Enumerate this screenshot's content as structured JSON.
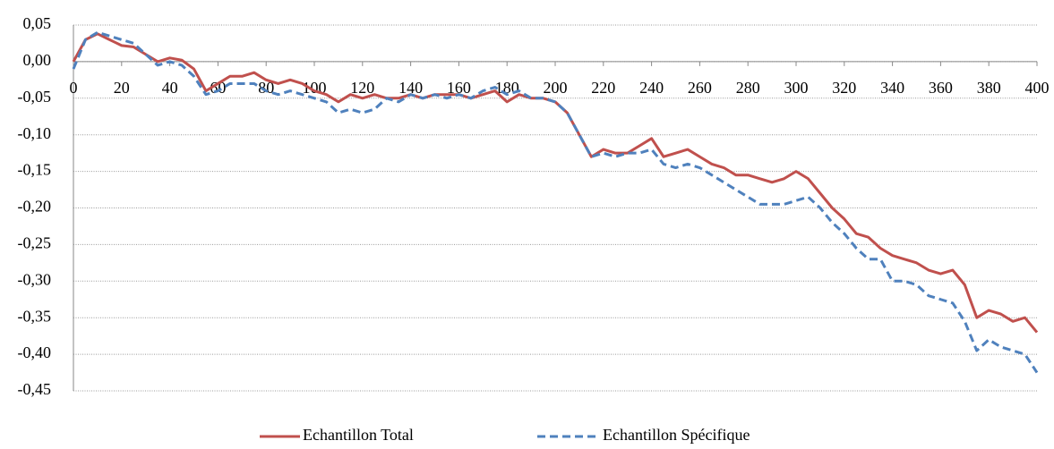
{
  "chart_data": {
    "type": "line",
    "x": [
      0,
      5,
      10,
      15,
      20,
      25,
      30,
      35,
      40,
      45,
      50,
      55,
      60,
      65,
      70,
      75,
      80,
      85,
      90,
      95,
      100,
      105,
      110,
      115,
      120,
      125,
      130,
      135,
      140,
      145,
      150,
      155,
      160,
      165,
      170,
      175,
      180,
      185,
      190,
      195,
      200,
      205,
      210,
      215,
      220,
      225,
      230,
      235,
      240,
      245,
      250,
      255,
      260,
      265,
      270,
      275,
      280,
      285,
      290,
      295,
      300,
      305,
      310,
      315,
      320,
      325,
      330,
      335,
      340,
      345,
      350,
      355,
      360,
      365,
      370,
      375,
      380,
      385,
      390,
      395,
      400
    ],
    "series": [
      {
        "name": "Echantillon Total",
        "color": "#c0504d",
        "dash": false,
        "values": [
          0,
          0.03,
          0.038,
          0.03,
          0.022,
          0.02,
          0.01,
          0,
          0.005,
          0.002,
          -0.01,
          -0.04,
          -0.03,
          -0.02,
          -0.02,
          -0.015,
          -0.025,
          -0.03,
          -0.025,
          -0.03,
          -0.04,
          -0.045,
          -0.055,
          -0.045,
          -0.05,
          -0.045,
          -0.05,
          -0.05,
          -0.045,
          -0.05,
          -0.045,
          -0.045,
          -0.045,
          -0.05,
          -0.045,
          -0.04,
          -0.055,
          -0.045,
          -0.05,
          -0.05,
          -0.055,
          -0.07,
          -0.1,
          -0.13,
          -0.12,
          -0.125,
          -0.125,
          -0.115,
          -0.105,
          -0.13,
          -0.125,
          -0.12,
          -0.13,
          -0.14,
          -0.145,
          -0.155,
          -0.155,
          -0.16,
          -0.165,
          -0.16,
          -0.15,
          -0.16,
          -0.18,
          -0.2,
          -0.215,
          -0.235,
          -0.24,
          -0.255,
          -0.265,
          -0.27,
          -0.275,
          -0.285,
          -0.29,
          -0.285,
          -0.305,
          -0.35,
          -0.34,
          -0.345,
          -0.355,
          -0.35,
          -0.37
        ]
      },
      {
        "name": "Echantillon Spécifique",
        "color": "#4f81bd",
        "dash": true,
        "values": [
          -0.01,
          0.03,
          0.04,
          0.035,
          0.03,
          0.025,
          0.01,
          -0.005,
          0,
          -0.005,
          -0.02,
          -0.045,
          -0.04,
          -0.03,
          -0.03,
          -0.03,
          -0.04,
          -0.045,
          -0.04,
          -0.045,
          -0.05,
          -0.055,
          -0.07,
          -0.065,
          -0.07,
          -0.065,
          -0.05,
          -0.055,
          -0.045,
          -0.05,
          -0.045,
          -0.05,
          -0.045,
          -0.05,
          -0.04,
          -0.035,
          -0.045,
          -0.04,
          -0.05,
          -0.05,
          -0.055,
          -0.07,
          -0.1,
          -0.13,
          -0.125,
          -0.13,
          -0.125,
          -0.125,
          -0.12,
          -0.14,
          -0.145,
          -0.14,
          -0.145,
          -0.155,
          -0.165,
          -0.175,
          -0.185,
          -0.195,
          -0.195,
          -0.195,
          -0.19,
          -0.185,
          -0.2,
          -0.22,
          -0.235,
          -0.255,
          -0.27,
          -0.27,
          -0.3,
          -0.3,
          -0.305,
          -0.32,
          -0.325,
          -0.33,
          -0.355,
          -0.395,
          -0.38,
          -0.39,
          -0.395,
          -0.4,
          -0.425
        ]
      }
    ],
    "xlim": [
      0,
      400
    ],
    "xticks": [
      0,
      20,
      40,
      60,
      80,
      100,
      120,
      140,
      160,
      180,
      200,
      220,
      240,
      260,
      280,
      300,
      320,
      340,
      360,
      380,
      400
    ],
    "ylim": [
      -0.45,
      0.05
    ],
    "yticks": [
      {
        "value": 0.05,
        "label": "0,05"
      },
      {
        "value": 0,
        "label": "0,00"
      },
      {
        "value": -0.05,
        "label": "-0,05"
      },
      {
        "value": -0.1,
        "label": "-0,10"
      },
      {
        "value": -0.15,
        "label": "-0,15"
      },
      {
        "value": -0.2,
        "label": "-0,20"
      },
      {
        "value": -0.25,
        "label": "-0,25"
      },
      {
        "value": -0.3,
        "label": "-0,30"
      },
      {
        "value": -0.35,
        "label": "-0,35"
      },
      {
        "value": -0.4,
        "label": "-0,40"
      },
      {
        "value": -0.45,
        "label": "-0,45"
      }
    ],
    "grid": true,
    "legend": "bottom"
  }
}
